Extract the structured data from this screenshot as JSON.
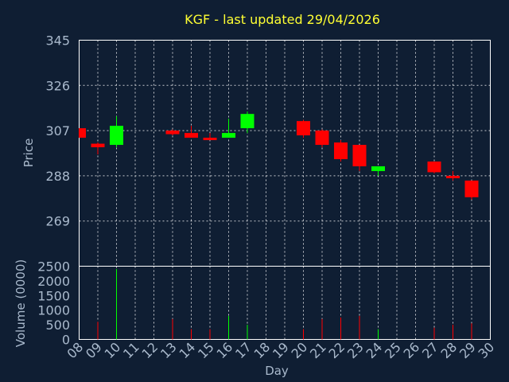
{
  "chart_data": {
    "type": "candlestick",
    "title": "KGF - last updated 29/04/2026",
    "xlabel": "Day",
    "colors": {
      "background": "#0f1e33",
      "up": "#00ff00",
      "down": "#ff0000",
      "title": "#ffff33",
      "text": "#a9b9cc",
      "grid": "#ffffff"
    },
    "x_ticks": [
      "08",
      "09",
      "10",
      "11",
      "12",
      "13",
      "14",
      "15",
      "16",
      "17",
      "18",
      "19",
      "20",
      "21",
      "22",
      "23",
      "24",
      "25",
      "26",
      "27",
      "28",
      "29",
      "30"
    ],
    "price_panel": {
      "ylabel": "Price",
      "ylim": [
        250,
        345
      ],
      "y_ticks": [
        269,
        288,
        307,
        326,
        345
      ]
    },
    "volume_panel": {
      "ylabel": "Volume (0000)",
      "ylim": [
        0,
        2500
      ],
      "y_ticks": [
        0,
        500,
        1000,
        1500,
        2000,
        2500
      ]
    },
    "candles": [
      {
        "day": 8,
        "open": 308,
        "high": 308,
        "low": 304,
        "close": 304,
        "volume": 0
      },
      {
        "day": 9,
        "open": 301.5,
        "high": 302,
        "low": 297,
        "close": 300,
        "volume": 600
      },
      {
        "day": 10,
        "open": 301,
        "high": 313,
        "low": 300,
        "close": 309,
        "volume": 2400
      },
      {
        "day": 13,
        "open": 307,
        "high": 307.5,
        "low": 305,
        "close": 305.5,
        "volume": 700
      },
      {
        "day": 14,
        "open": 306,
        "high": 309,
        "low": 304,
        "close": 304,
        "volume": 350
      },
      {
        "day": 15,
        "open": 304,
        "high": 306,
        "low": 303,
        "close": 303.5,
        "volume": 350
      },
      {
        "day": 16,
        "open": 304,
        "high": 312,
        "low": 304,
        "close": 306,
        "volume": 800
      },
      {
        "day": 17,
        "open": 308,
        "high": 315,
        "low": 306,
        "close": 314,
        "volume": 500
      },
      {
        "day": 20,
        "open": 311,
        "high": 311.5,
        "low": 304,
        "close": 305,
        "volume": 350
      },
      {
        "day": 21,
        "open": 307,
        "high": 307.5,
        "low": 300,
        "close": 301,
        "volume": 700
      },
      {
        "day": 22,
        "open": 302,
        "high": 303,
        "low": 294,
        "close": 295,
        "volume": 750
      },
      {
        "day": 23,
        "open": 301,
        "high": 301,
        "low": 290,
        "close": 292,
        "volume": 800
      },
      {
        "day": 24,
        "open": 290,
        "high": 292,
        "low": 288,
        "close": 292,
        "volume": 350
      },
      {
        "day": 27,
        "open": 294,
        "high": 294,
        "low": 289,
        "close": 289.5,
        "volume": 400
      },
      {
        "day": 28,
        "open": 288,
        "high": 290,
        "low": 286,
        "close": 287,
        "volume": 500
      },
      {
        "day": 29,
        "open": 286,
        "high": 286,
        "low": 278,
        "close": 279,
        "volume": 550
      }
    ]
  }
}
